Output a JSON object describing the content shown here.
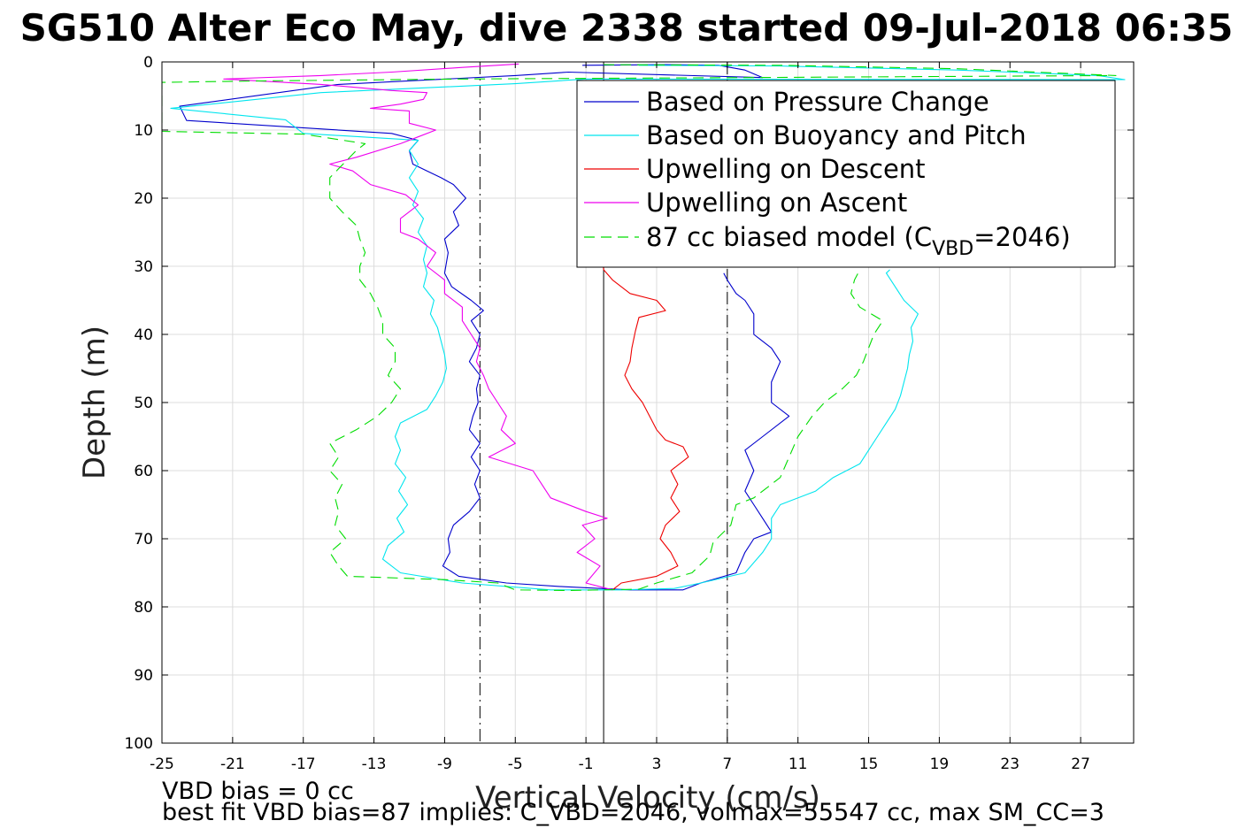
{
  "chart_data": {
    "type": "line",
    "title": "SG510 Alter Eco May, dive 2338 started 09-Jul-2018 06:35",
    "xlabel": "Vertical Velocity (cm/s)",
    "ylabel": "Depth (m)",
    "xlim": [
      -25,
      30
    ],
    "ylim": [
      0,
      100
    ],
    "y_reversed": true,
    "grid": true,
    "xticks": [
      "-25",
      "-21",
      "-17",
      "-13",
      "-9",
      "-5",
      "-1",
      "3",
      "7",
      "11",
      "15",
      "19",
      "23",
      "27"
    ],
    "yticks": [
      "0",
      "10",
      "20",
      "30",
      "40",
      "50",
      "60",
      "70",
      "80",
      "90",
      "100"
    ],
    "legend_position": "top-right",
    "reference_lines": [
      {
        "x": -7,
        "style": "dash-dot",
        "color": "#000000"
      },
      {
        "x": 0,
        "style": "solid",
        "color": "#000000"
      },
      {
        "x": 7,
        "style": "dash-dot",
        "color": "#000000"
      }
    ],
    "series": [
      {
        "name": "Based on Pressure Change",
        "color": "#0000cc",
        "style": "solid",
        "points": [
          [
            -1.2,
            0.5
          ],
          [
            3.5,
            0.4
          ],
          [
            6.5,
            0.5
          ],
          [
            8,
            1.2
          ],
          [
            9,
            2.3
          ],
          [
            -2,
            1.5
          ],
          [
            -5,
            2.0
          ],
          [
            -15,
            3.3
          ],
          [
            -24,
            6.5
          ],
          [
            -23.6,
            8.6
          ],
          [
            -12,
            10.5
          ],
          [
            -10.5,
            11.5
          ],
          [
            -11,
            13
          ],
          [
            -10.8,
            15
          ],
          [
            -10,
            16
          ],
          [
            -9.2,
            17
          ],
          [
            -8.5,
            18
          ],
          [
            -7.8,
            20
          ],
          [
            -8.5,
            22
          ],
          [
            -8.2,
            24
          ],
          [
            -9,
            26
          ],
          [
            -8.8,
            28
          ],
          [
            -9,
            31
          ],
          [
            -8.6,
            33
          ],
          [
            -7.5,
            35
          ],
          [
            -6.8,
            36.5
          ],
          [
            -7.5,
            38
          ],
          [
            -7,
            40
          ],
          [
            -7.2,
            42
          ],
          [
            -7.6,
            44
          ],
          [
            -7.0,
            46
          ],
          [
            -7.2,
            48
          ],
          [
            -7.1,
            50
          ],
          [
            -7.4,
            52
          ],
          [
            -7.6,
            54
          ],
          [
            -7.0,
            56
          ],
          [
            -7.5,
            58
          ],
          [
            -7.0,
            60
          ],
          [
            -7.3,
            62
          ],
          [
            -7.0,
            64
          ],
          [
            -7.6,
            66
          ],
          [
            -8.5,
            68
          ],
          [
            -8.8,
            70
          ],
          [
            -8.7,
            72
          ],
          [
            -9.1,
            74
          ],
          [
            -8.2,
            75.5
          ],
          [
            -5.5,
            76.5
          ],
          [
            -2.5,
            77
          ],
          [
            1.5,
            77.5
          ],
          [
            4.5,
            77.5
          ],
          [
            5.5,
            76.5
          ],
          [
            7.5,
            75
          ],
          [
            8,
            72
          ],
          [
            8.5,
            70
          ],
          [
            9.5,
            69
          ],
          [
            9,
            67
          ],
          [
            8.5,
            65
          ],
          [
            8,
            63
          ],
          [
            8.5,
            60
          ],
          [
            8,
            57
          ],
          [
            9,
            55
          ],
          [
            10.5,
            52
          ],
          [
            9.5,
            50
          ],
          [
            9.5,
            47
          ],
          [
            10,
            44
          ],
          [
            9.5,
            42
          ],
          [
            8.5,
            40
          ],
          [
            8.5,
            37
          ],
          [
            8,
            35
          ],
          [
            7.5,
            34
          ],
          [
            7,
            32
          ],
          [
            6.8,
            31
          ]
        ]
      },
      {
        "name": "Based on Buoyancy and Pitch",
        "color": "#00e5ee",
        "style": "solid",
        "points": [
          [
            2,
            0.5
          ],
          [
            10,
            0.6
          ],
          [
            20,
            1.2
          ],
          [
            28,
            2.0
          ],
          [
            29.5,
            2.6
          ],
          [
            -1,
            2.5
          ],
          [
            -5,
            3.2
          ],
          [
            -16,
            4.5
          ],
          [
            -24.5,
            6.8
          ],
          [
            -18,
            8.5
          ],
          [
            -17,
            10.5
          ],
          [
            -10.5,
            11.5
          ],
          [
            -11,
            13
          ],
          [
            -10.5,
            15
          ],
          [
            -11,
            17
          ],
          [
            -10.5,
            19
          ],
          [
            -10.8,
            21
          ],
          [
            -10.2,
            23
          ],
          [
            -10.5,
            25
          ],
          [
            -10.0,
            27
          ],
          [
            -10.2,
            29
          ],
          [
            -10.0,
            31
          ],
          [
            -10.2,
            33
          ],
          [
            -9.6,
            35
          ],
          [
            -9.8,
            37
          ],
          [
            -9.4,
            39
          ],
          [
            -9.2,
            41
          ],
          [
            -9.0,
            43
          ],
          [
            -8.9,
            45
          ],
          [
            -9.1,
            47
          ],
          [
            -9.5,
            49
          ],
          [
            -10,
            51
          ],
          [
            -11.5,
            53
          ],
          [
            -11.8,
            55
          ],
          [
            -11.5,
            57
          ],
          [
            -11.8,
            59
          ],
          [
            -11.2,
            61
          ],
          [
            -11.6,
            63
          ],
          [
            -11.1,
            65
          ],
          [
            -11.7,
            67
          ],
          [
            -11.3,
            69
          ],
          [
            -12.2,
            71
          ],
          [
            -12.5,
            73
          ],
          [
            -11.5,
            75
          ],
          [
            -8,
            76.5
          ],
          [
            -3,
            77.5
          ],
          [
            1,
            77.5
          ],
          [
            4,
            77.3
          ],
          [
            5.5,
            76.5
          ],
          [
            8,
            75
          ],
          [
            9,
            72
          ],
          [
            9.5,
            70
          ],
          [
            9.5,
            67
          ],
          [
            10,
            65
          ],
          [
            12,
            63
          ],
          [
            13,
            61
          ],
          [
            14.5,
            59
          ],
          [
            15,
            57
          ],
          [
            15.5,
            55
          ],
          [
            16,
            53
          ],
          [
            16.5,
            51
          ],
          [
            16.8,
            49
          ],
          [
            17,
            47
          ],
          [
            17.2,
            45
          ],
          [
            17.3,
            43
          ],
          [
            17.5,
            41
          ],
          [
            17.4,
            39
          ],
          [
            17.8,
            37
          ],
          [
            17,
            35
          ],
          [
            16.5,
            33
          ],
          [
            16,
            31
          ],
          [
            16.2,
            30.5
          ]
        ]
      },
      {
        "name": "Upwelling on Descent",
        "color": "#ee0000",
        "style": "solid",
        "points": [
          [
            -1.5,
            8.5
          ],
          [
            -1.0,
            8.0
          ],
          [
            -0.8,
            7.5
          ],
          [
            0,
            30.5
          ],
          [
            0.5,
            32
          ],
          [
            1.5,
            34
          ],
          [
            3.0,
            35
          ],
          [
            3.5,
            36.5
          ],
          [
            2,
            37.5
          ],
          [
            1.8,
            39.5
          ],
          [
            1.6,
            42
          ],
          [
            1.5,
            44
          ],
          [
            1.2,
            46
          ],
          [
            1.6,
            48
          ],
          [
            2.2,
            50
          ],
          [
            2.6,
            52
          ],
          [
            3.0,
            54
          ],
          [
            3.5,
            55.5
          ],
          [
            4.5,
            56.5
          ],
          [
            4.8,
            58
          ],
          [
            3.8,
            60
          ],
          [
            4.2,
            62
          ],
          [
            3.8,
            64
          ],
          [
            4.3,
            66
          ],
          [
            3.5,
            68
          ],
          [
            3.2,
            70
          ],
          [
            3.8,
            72
          ],
          [
            4.2,
            74
          ],
          [
            3.0,
            75.5
          ],
          [
            1.0,
            76.5
          ],
          [
            0.5,
            77.5
          ]
        ]
      },
      {
        "name": "Upwelling on Ascent",
        "color": "#ee00ee",
        "style": "solid",
        "points": [
          [
            -4.8,
            0.3
          ],
          [
            -8,
            0.8
          ],
          [
            -12,
            1.5
          ],
          [
            -16,
            2.0
          ],
          [
            -21.5,
            2.5
          ],
          [
            -16,
            3.3
          ],
          [
            -12,
            4.2
          ],
          [
            -10,
            4.5
          ],
          [
            -10.2,
            5.5
          ],
          [
            -11.5,
            6.2
          ],
          [
            -13.2,
            6.8
          ],
          [
            -11.0,
            7.2
          ],
          [
            -11,
            9
          ],
          [
            -9.5,
            10
          ],
          [
            -10.5,
            11
          ],
          [
            -11.5,
            12
          ],
          [
            -14,
            14
          ],
          [
            -15.5,
            15
          ],
          [
            -14.2,
            16
          ],
          [
            -13.2,
            18
          ],
          [
            -11.2,
            19.5
          ],
          [
            -10.5,
            21
          ],
          [
            -11.5,
            23
          ],
          [
            -11.5,
            25
          ],
          [
            -10.5,
            26
          ],
          [
            -9.5,
            28
          ],
          [
            -10,
            30
          ],
          [
            -9,
            32
          ],
          [
            -9,
            34
          ],
          [
            -8,
            36
          ],
          [
            -8,
            38
          ],
          [
            -7.5,
            40
          ],
          [
            -7.0,
            42
          ],
          [
            -7.2,
            44
          ],
          [
            -6.8,
            46
          ],
          [
            -6.5,
            48
          ],
          [
            -6,
            50
          ],
          [
            -5.5,
            52
          ],
          [
            -5.8,
            54
          ],
          [
            -5,
            56
          ],
          [
            -6.5,
            58
          ],
          [
            -4,
            60
          ],
          [
            -3.5,
            62
          ],
          [
            -3,
            64
          ],
          [
            -1,
            66
          ],
          [
            0.2,
            67
          ],
          [
            -1.2,
            68
          ],
          [
            -0.5,
            70
          ],
          [
            -1.5,
            72
          ],
          [
            -0.2,
            74
          ],
          [
            -1.0,
            76.5
          ],
          [
            0.5,
            77.5
          ]
        ]
      },
      {
        "name": "87 cc biased model",
        "color": "#00dd00",
        "style": "dashed",
        "points": [
          [
            0,
            0.4
          ],
          [
            10,
            0.5
          ],
          [
            20,
            1.0
          ],
          [
            29,
            2.0
          ],
          [
            8,
            2.3
          ],
          [
            -8,
            2.5
          ],
          [
            -20,
            2.8
          ],
          [
            -25,
            3.0
          ],
          [
            -25,
            10.2
          ],
          [
            -17,
            10.6
          ],
          [
            -13.5,
            12
          ],
          [
            -14,
            13
          ],
          [
            -15.5,
            17
          ],
          [
            -15.5,
            20
          ],
          [
            -14.8,
            22
          ],
          [
            -14,
            24
          ],
          [
            -13.8,
            26
          ],
          [
            -13.5,
            28
          ],
          [
            -13.8,
            30
          ],
          [
            -13.8,
            32
          ],
          [
            -13.2,
            34
          ],
          [
            -12.8,
            36
          ],
          [
            -12.5,
            38
          ],
          [
            -12.5,
            40
          ],
          [
            -11.8,
            42
          ],
          [
            -11.8,
            44
          ],
          [
            -12.2,
            46
          ],
          [
            -11.5,
            48
          ],
          [
            -12,
            50
          ],
          [
            -12.8,
            52
          ],
          [
            -14.0,
            54
          ],
          [
            -15.5,
            56
          ],
          [
            -15.0,
            58
          ],
          [
            -15.5,
            60
          ],
          [
            -14.8,
            62
          ],
          [
            -15.2,
            64
          ],
          [
            -15.0,
            66
          ],
          [
            -15.2,
            68
          ],
          [
            -14.6,
            70
          ],
          [
            -15.5,
            72
          ],
          [
            -15.0,
            74
          ],
          [
            -14.5,
            75.5
          ],
          [
            -9,
            76
          ],
          [
            -6,
            76.5
          ],
          [
            -5,
            77.5
          ],
          [
            -2,
            77.6
          ],
          [
            2,
            77.4
          ],
          [
            3,
            76.5
          ],
          [
            5,
            75
          ],
          [
            6,
            72.5
          ],
          [
            6.2,
            70.5
          ],
          [
            7.2,
            68
          ],
          [
            7.5,
            65
          ],
          [
            8.5,
            64
          ],
          [
            10,
            61
          ],
          [
            10.5,
            58
          ],
          [
            11,
            55
          ],
          [
            11.8,
            52
          ],
          [
            12.5,
            50
          ],
          [
            13.5,
            48
          ],
          [
            14.3,
            46
          ],
          [
            14.7,
            44
          ],
          [
            15,
            42
          ],
          [
            15.3,
            40
          ],
          [
            15.8,
            38
          ],
          [
            14.5,
            36
          ],
          [
            14,
            34
          ],
          [
            14.2,
            32
          ],
          [
            14.5,
            30.5
          ]
        ]
      }
    ]
  },
  "legend": {
    "items": [
      {
        "label": "Based on Pressure Change",
        "color": "#0000cc",
        "style": "solid"
      },
      {
        "label": "Based on Buoyancy and Pitch",
        "color": "#00e5ee",
        "style": "solid"
      },
      {
        "label": "Upwelling on Descent",
        "color": "#ee0000",
        "style": "solid"
      },
      {
        "label": "Upwelling on Ascent",
        "color": "#ee00ee",
        "style": "solid"
      }
    ],
    "model": {
      "prefix": "87 cc biased model (C",
      "subscript": "VBD",
      "suffix": "=2046)",
      "color": "#00dd00",
      "style": "dashed"
    }
  },
  "notes": {
    "line1": "VBD bias = 0 cc",
    "line2": "best fit VBD bias=87 implies: C_VBD=2046, volmax=55547 cc, max SM_CC=3"
  }
}
